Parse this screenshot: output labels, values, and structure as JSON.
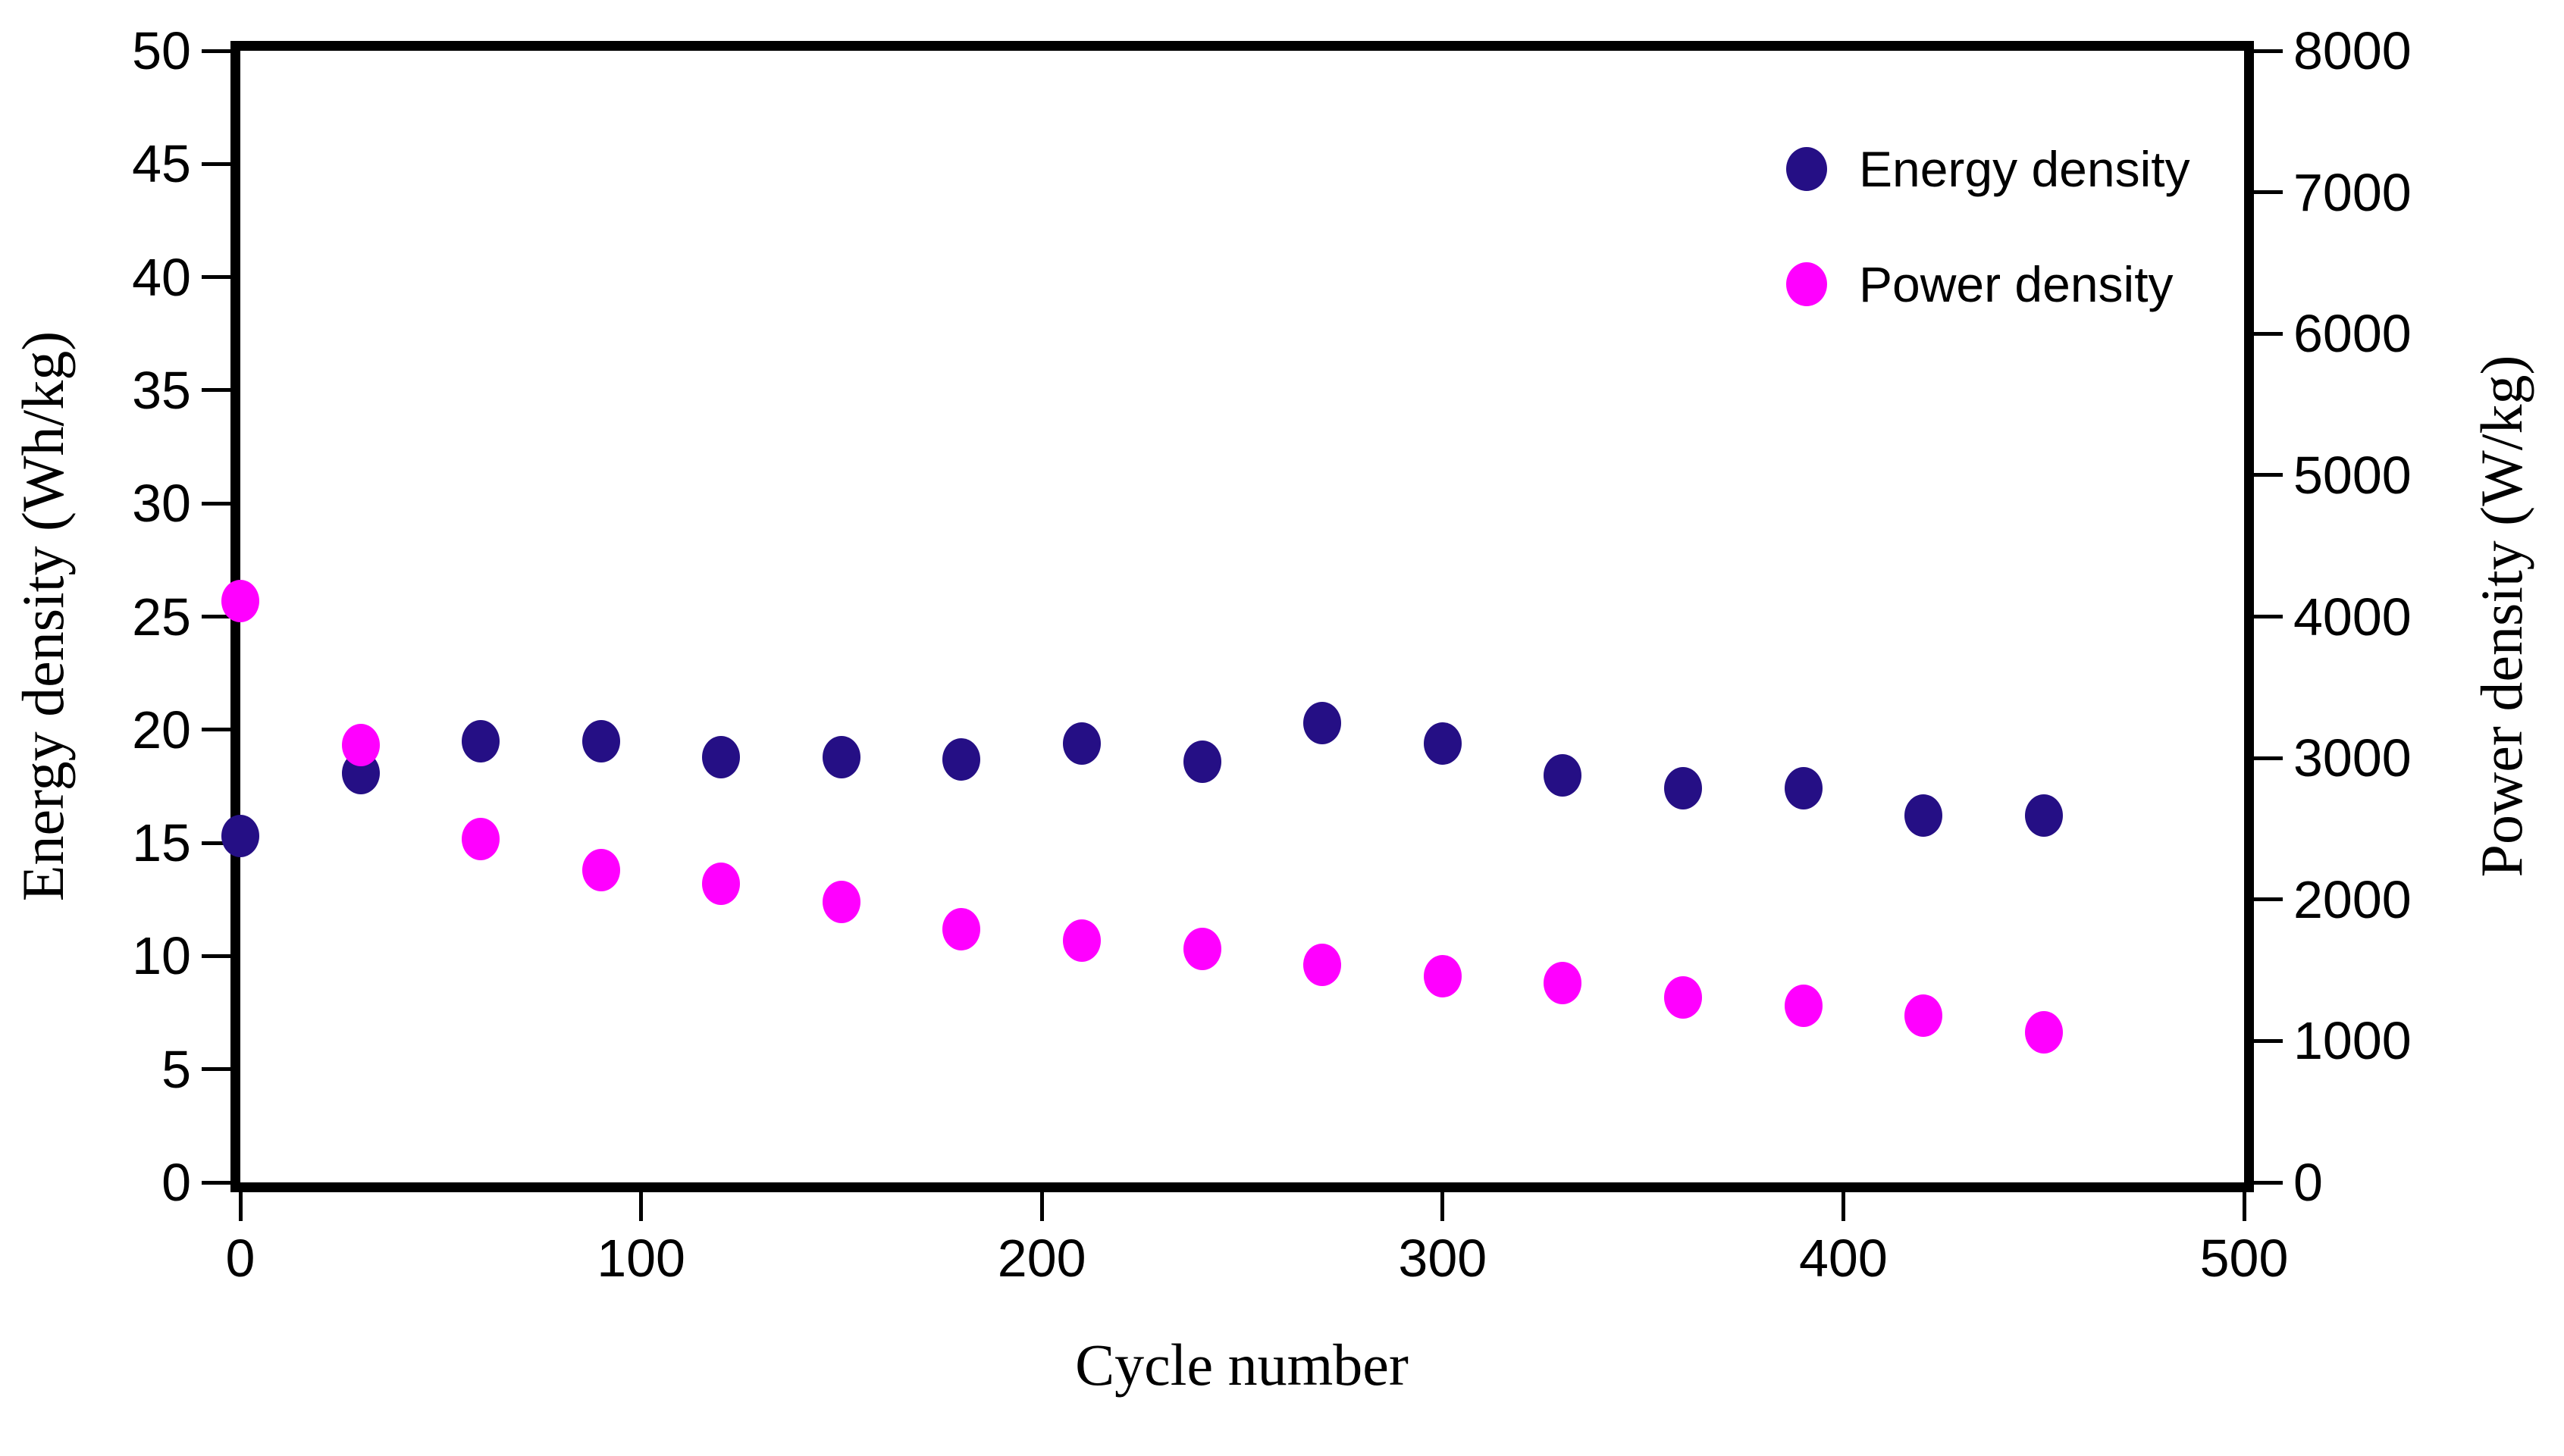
{
  "figure": {
    "background": "#ffffff",
    "frame_color": "#000000"
  },
  "axes": {
    "x": {
      "label": "Cycle number",
      "min": 0,
      "max": 500,
      "ticks": [
        0,
        100,
        200,
        300,
        400,
        500
      ]
    },
    "y_left": {
      "label": "Energy density (Wh/kg)",
      "min": 0,
      "max": 50,
      "ticks": [
        0,
        5,
        10,
        15,
        20,
        25,
        30,
        35,
        40,
        45,
        50
      ]
    },
    "y_right": {
      "label": "Power density (W/kg)",
      "min": 0,
      "max": 8000,
      "ticks": [
        0,
        1000,
        2000,
        3000,
        4000,
        5000,
        6000,
        7000,
        8000
      ]
    }
  },
  "legend": {
    "items": [
      {
        "label": "Energy density",
        "color": "#250f85"
      },
      {
        "label": "Power density",
        "color": "#ff00ff"
      }
    ]
  },
  "chart_data": {
    "type": "scatter",
    "title": "",
    "xlabel": "Cycle number",
    "ylabel_left": "Energy density (Wh/kg)",
    "ylabel_right": "Power density (W/kg)",
    "xlim": [
      0,
      500
    ],
    "ylim_left": [
      0,
      50
    ],
    "ylim_right": [
      0,
      8000
    ],
    "grid": false,
    "legend_position": "upper right inside",
    "marker": "ellipse",
    "x": [
      0,
      30,
      60,
      90,
      120,
      150,
      180,
      210,
      240,
      270,
      300,
      330,
      360,
      390,
      420,
      450
    ],
    "series": [
      {
        "name": "Energy density",
        "axis": "left",
        "unit": "Wh/kg",
        "color": "#250f85",
        "values": [
          15.3,
          18.1,
          19.5,
          19.5,
          18.8,
          18.8,
          18.7,
          19.4,
          18.6,
          20.3,
          19.4,
          18.0,
          17.4,
          17.4,
          16.2,
          16.2
        ]
      },
      {
        "name": "Power density",
        "axis": "right",
        "unit": "W/kg",
        "color": "#ff00ff",
        "values": [
          4110,
          3090,
          2430,
          2210,
          2110,
          1980,
          1790,
          1710,
          1650,
          1540,
          1460,
          1410,
          1310,
          1250,
          1180,
          1060
        ]
      }
    ]
  }
}
